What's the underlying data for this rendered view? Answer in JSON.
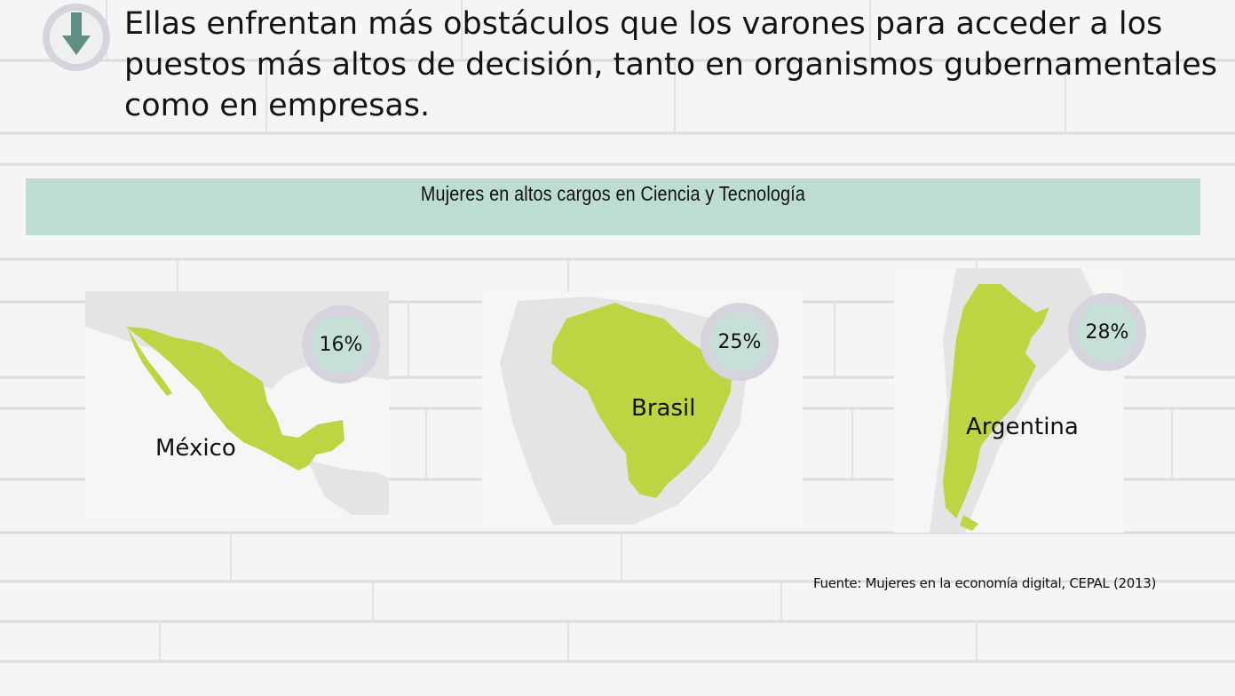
{
  "headline": "Ellas enfrentan más obstáculos que los varones para acceder a los puestos más altos de decisión, tanto en organismos gubernamentales como en empresas.",
  "header_icon": "arrow-down-icon",
  "banner_title": "Mujeres en altos cargos en Ciencia y Tecnología",
  "countries": [
    {
      "name": "México",
      "value": "16%"
    },
    {
      "name": "Brasil",
      "value": "25%"
    },
    {
      "name": "Argentina",
      "value": "28%"
    }
  ],
  "source": "Fuente: Mujeres en la economía digital, CEPAL (2013)",
  "colors": {
    "banner": "#bddcd3",
    "country_fill": "#bcd542",
    "map_background": "#e3e3e3",
    "badge_ring": "#d5d4dc",
    "badge_inner": "#c6e0d8",
    "icon_arrow": "#5f8f82"
  }
}
